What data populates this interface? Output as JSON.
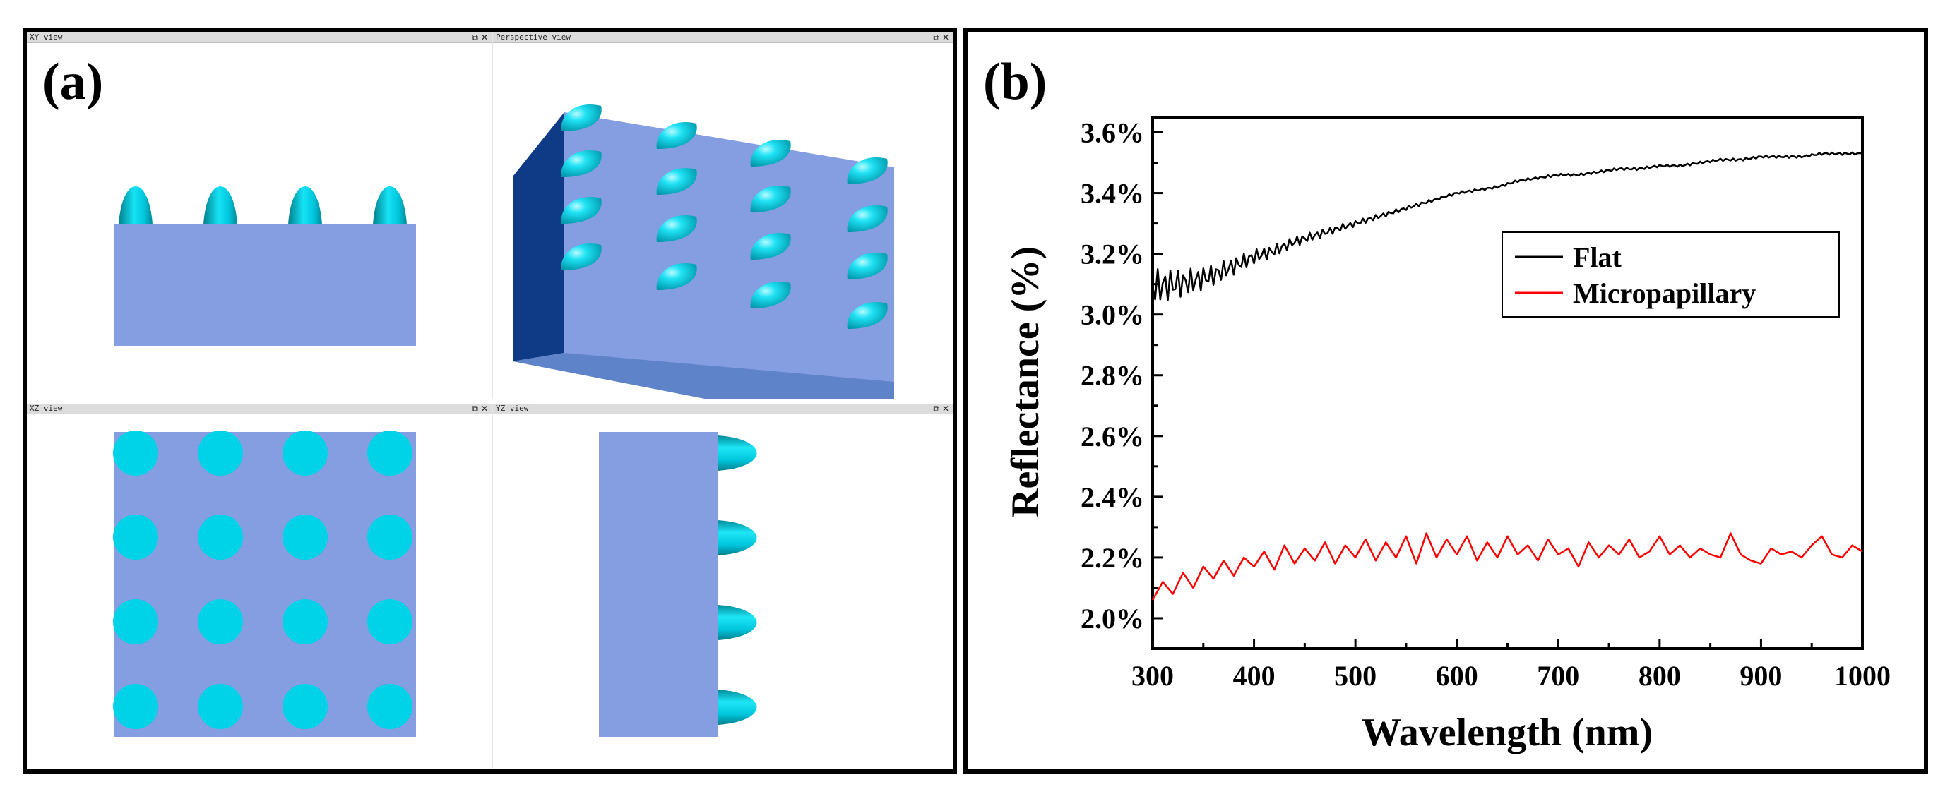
{
  "panel_a": {
    "label": "(a)",
    "viewports": [
      {
        "title": "XY view"
      },
      {
        "title": "Perspective view"
      },
      {
        "title": "XZ view"
      },
      {
        "title": "YZ view"
      }
    ],
    "colors": {
      "substrate": "#859DE1",
      "papilla": "#00D3E8",
      "side_dark": "#0F3A86",
      "front": "#5F83C9"
    }
  },
  "panel_b": {
    "label": "(b)",
    "legend": {
      "flat": "Flat",
      "micropapillary": "Micropapillary"
    },
    "colors": {
      "flat": "#000000",
      "micropapillary": "#FF0000"
    }
  },
  "chart_data": {
    "type": "line",
    "xlabel": "Wavelength (nm)",
    "ylabel": "Reflectance (%)",
    "xlim": [
      300,
      1000
    ],
    "ylim": [
      1.9,
      3.65
    ],
    "xticks": [
      300,
      400,
      500,
      600,
      700,
      800,
      900,
      1000
    ],
    "yticks": [
      2.0,
      2.2,
      2.4,
      2.6,
      2.8,
      3.0,
      3.2,
      3.4,
      3.6
    ],
    "ytick_labels": [
      "2.0%",
      "2.2%",
      "2.4%",
      "2.6%",
      "2.8%",
      "3.0%",
      "3.2%",
      "3.4%",
      "3.6%"
    ],
    "legend_position": "upper-right",
    "series": [
      {
        "name": "Flat",
        "x": [
          300,
          320,
          340,
          360,
          380,
          400,
          420,
          440,
          460,
          480,
          500,
          520,
          540,
          560,
          580,
          600,
          620,
          640,
          660,
          680,
          700,
          720,
          740,
          760,
          780,
          800,
          820,
          840,
          860,
          880,
          900,
          920,
          940,
          960,
          980,
          1000
        ],
        "y": [
          3.09,
          3.1,
          3.11,
          3.13,
          3.16,
          3.19,
          3.21,
          3.24,
          3.26,
          3.28,
          3.3,
          3.32,
          3.34,
          3.36,
          3.38,
          3.4,
          3.41,
          3.42,
          3.44,
          3.45,
          3.46,
          3.46,
          3.47,
          3.48,
          3.48,
          3.49,
          3.49,
          3.5,
          3.51,
          3.51,
          3.52,
          3.52,
          3.52,
          3.53,
          3.53,
          3.53
        ]
      },
      {
        "name": "Micropapillary",
        "x": [
          300,
          310,
          320,
          330,
          340,
          350,
          360,
          370,
          380,
          390,
          400,
          410,
          420,
          430,
          440,
          450,
          460,
          470,
          480,
          490,
          500,
          510,
          520,
          530,
          540,
          550,
          560,
          570,
          580,
          590,
          600,
          610,
          620,
          630,
          640,
          650,
          660,
          670,
          680,
          690,
          700,
          710,
          720,
          730,
          740,
          750,
          760,
          770,
          780,
          790,
          800,
          810,
          820,
          830,
          840,
          850,
          860,
          870,
          880,
          890,
          900,
          910,
          920,
          930,
          940,
          950,
          960,
          970,
          980,
          990,
          1000
        ],
        "y": [
          2.06,
          2.12,
          2.08,
          2.15,
          2.1,
          2.17,
          2.13,
          2.19,
          2.14,
          2.2,
          2.17,
          2.22,
          2.16,
          2.24,
          2.18,
          2.23,
          2.19,
          2.25,
          2.18,
          2.24,
          2.2,
          2.26,
          2.19,
          2.25,
          2.2,
          2.27,
          2.18,
          2.28,
          2.2,
          2.26,
          2.21,
          2.27,
          2.19,
          2.25,
          2.2,
          2.27,
          2.21,
          2.24,
          2.19,
          2.26,
          2.21,
          2.23,
          2.17,
          2.25,
          2.2,
          2.24,
          2.21,
          2.26,
          2.2,
          2.22,
          2.27,
          2.21,
          2.24,
          2.2,
          2.23,
          2.21,
          2.2,
          2.28,
          2.21,
          2.19,
          2.18,
          2.23,
          2.21,
          2.22,
          2.2,
          2.24,
          2.27,
          2.21,
          2.2,
          2.24,
          2.22
        ]
      }
    ]
  }
}
